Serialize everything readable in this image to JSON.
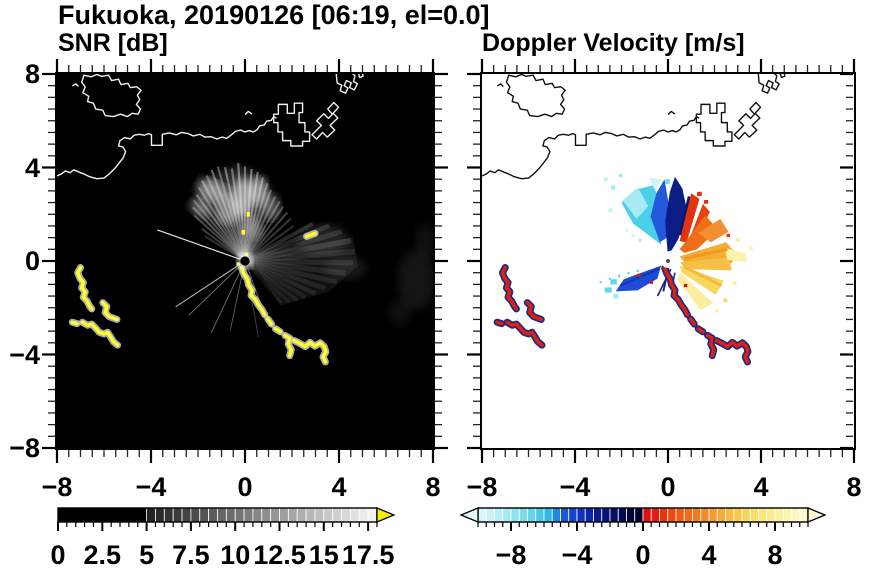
{
  "title": "Fukuoka, 20190126 [06:19, el=0.0]",
  "panels": {
    "snr": {
      "title": "SNR [dB]",
      "x_tick_labels": [
        "−8",
        "−4",
        "0",
        "4",
        "8"
      ],
      "y_tick_labels": [
        "8",
        "4",
        "0",
        "−4",
        "−8"
      ],
      "colorbar": {
        "unit": "dB",
        "min": 0,
        "max": 18,
        "block_step": 0.5,
        "label_values": [
          0,
          2.5,
          5,
          7.5,
          10,
          12.5,
          15,
          17.5
        ],
        "labels": [
          "0",
          "2.5",
          "5",
          "7.5",
          "10",
          "12.5",
          "15",
          "17.5"
        ],
        "style": "grayscale",
        "black_below": 5,
        "overflow_arrow": "right",
        "arrow_color": "#f6ef0a"
      }
    },
    "doppler": {
      "title": "Doppler Velocity [m/s]",
      "x_tick_labels": [
        "−8",
        "−4",
        "0",
        "4",
        "8"
      ],
      "colorbar": {
        "unit": "m/s",
        "min": -10,
        "max": 10,
        "block_step": 0.5,
        "label_values": [
          -8,
          -4,
          0,
          4,
          8
        ],
        "labels": [
          "−8",
          "−4",
          "0",
          "4",
          "8"
        ],
        "arrows": "both",
        "stops_negative": [
          [
            -10,
            "#e3f9fb"
          ],
          [
            -9,
            "#c2f1f7"
          ],
          [
            -8,
            "#9ae7f2"
          ],
          [
            -7,
            "#6fdaed"
          ],
          [
            -6,
            "#3cc6e6"
          ],
          [
            -5.5,
            "#28a9e2"
          ],
          [
            -5,
            "#1d64e0"
          ],
          [
            -4,
            "#1238c8"
          ],
          [
            -3,
            "#0a209c"
          ],
          [
            -2,
            "#06106c"
          ],
          [
            -1,
            "#030844"
          ],
          [
            -0.5,
            "#02052f"
          ]
        ],
        "stops_positive": [
          [
            0.5,
            "#e01010"
          ],
          [
            1,
            "#e62910"
          ],
          [
            2,
            "#f05410"
          ],
          [
            3,
            "#f2731c"
          ],
          [
            4,
            "#f3942c"
          ],
          [
            5,
            "#f6b43c"
          ],
          [
            6,
            "#f8cf52"
          ],
          [
            7,
            "#fae370"
          ],
          [
            8,
            "#fcef94"
          ],
          [
            9,
            "#fdf5b8"
          ],
          [
            10,
            "#fef9d6"
          ]
        ]
      }
    }
  },
  "axes": {
    "min": -8,
    "max": 8,
    "major_step": 4,
    "minor_step": 0.5
  },
  "chart_data": [
    {
      "type": "heatmap",
      "title": "SNR [dB]",
      "x_range": [
        -8,
        8
      ],
      "y_range": [
        -8,
        8
      ],
      "x_ticks": [
        -8,
        -4,
        0,
        4,
        8
      ],
      "y_ticks": [
        8,
        4,
        0,
        -4,
        -8
      ],
      "colorbar_range": [
        0,
        18
      ],
      "colorbar_ticks": [
        0,
        2.5,
        5,
        7.5,
        10,
        12.5,
        15,
        17.5
      ],
      "colormap": "black to white grayscale; yellow right-arrow for values above 18 dB",
      "background": "black",
      "features": [
        "radar located at origin (0,0)",
        "gray echo fan between azimuths ~-60 and +140 degrees, brightest to the north at ranges 1.5-4",
        "thin bright spokes toward WNW and SW",
        "strong yellow (>18 dB) squiggly echoes near (-7,-1), (-5.8,-2.1) and (-6.3,-3.1)",
        "strong yellow arc from (0,-0.4) curving down-right to (3.4,-4.3)",
        "white coastline with island near (-5.5,7), harbor piers near (2 to 5, 5 to 8)"
      ]
    },
    {
      "type": "heatmap",
      "title": "Doppler Velocity [m/s]",
      "x_range": [
        -8,
        8
      ],
      "y_range": [
        -8,
        8
      ],
      "x_ticks": [
        -8,
        -4,
        0,
        4,
        8
      ],
      "y_ticks": [
        8,
        4,
        0,
        -4,
        -8
      ],
      "colorbar_range": [
        -10,
        10
      ],
      "colorbar_ticks": [
        -8,
        -4,
        0,
        4,
        8
      ],
      "colormap": "pale-cyan to navy for negative velocities; red to pale-yellow for positive",
      "background": "white",
      "features": [
        "cyan-to-navy (negative) wedge north-northwest of radar",
        "red-to-orange (positive) wedge north-northeast",
        "gold and pale-yellow fan east to southeast",
        "royal-blue wedge toward southwest with cyan fragments",
        "red echoes rimmed navy along arc (0,-0.4) to (3.4,-4.3) and near (-7,-1), (-5.8,-2.1), (-6.3,-3.1)",
        "black coastline overlay"
      ]
    }
  ]
}
